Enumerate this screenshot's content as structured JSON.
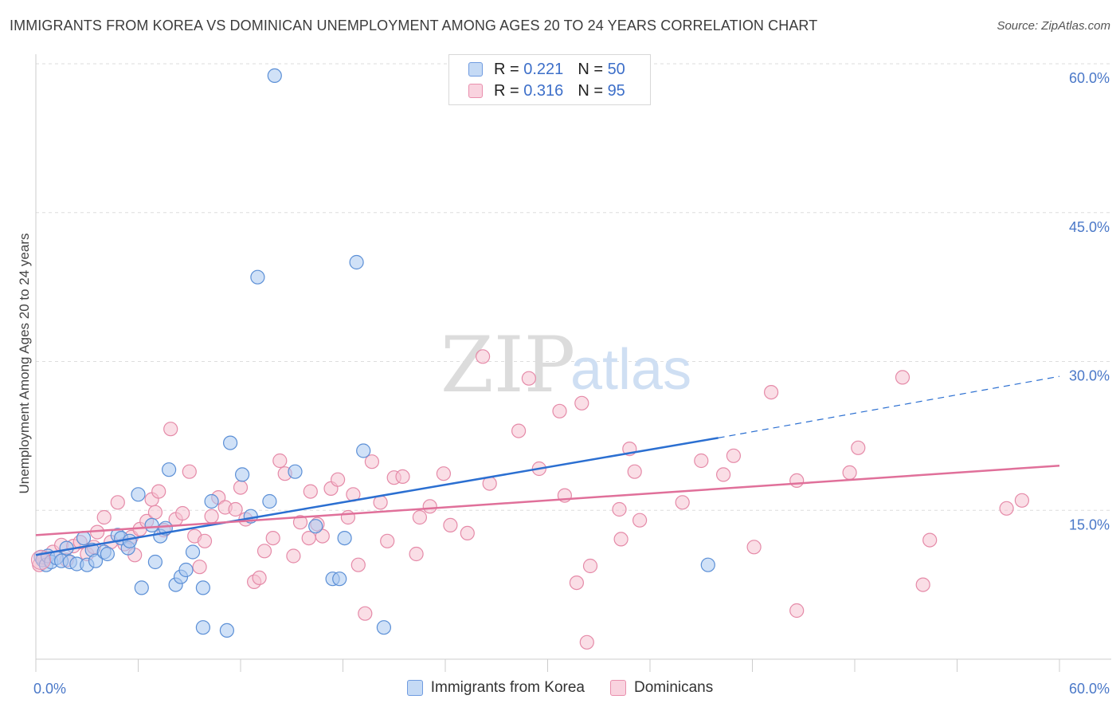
{
  "title": "IMMIGRANTS FROM KOREA VS DOMINICAN UNEMPLOYMENT AMONG AGES 20 TO 24 YEARS CORRELATION CHART",
  "source": "Source: ZipAtlas.com",
  "watermark": {
    "zip": "ZIP",
    "atlas": "atlas"
  },
  "stats": [
    {
      "r_label": "R =",
      "r_value": "0.221",
      "n_label": "N =",
      "n_value": "50"
    },
    {
      "r_label": "R =",
      "r_value": "0.316",
      "n_label": "N =",
      "n_value": "95"
    }
  ],
  "legend": [
    {
      "label": "Immigrants from Korea"
    },
    {
      "label": "Dominicans"
    }
  ],
  "colors": {
    "korea_fill": "#aac8f0",
    "korea_stroke": "#5b8fd6",
    "korea_line": "#2b6fd1",
    "dominican_fill": "#f6c2d2",
    "dominican_stroke": "#e58aa8",
    "dominican_line": "#e0709a",
    "tick_text": "#4a78c8",
    "grid": "#dddddd"
  },
  "chart_data": {
    "type": "scatter",
    "title": "IMMIGRANTS FROM KOREA VS DOMINICAN UNEMPLOYMENT AMONG AGES 20 TO 24 YEARS CORRELATION CHART",
    "xlabel": "",
    "ylabel": "Unemployment Among Ages 20 to 24 years",
    "xlim": [
      0,
      60
    ],
    "ylim": [
      0,
      60
    ],
    "x_tick_labels": [
      "0.0%",
      "60.0%"
    ],
    "y_ticks": [
      15,
      30,
      45,
      60
    ],
    "y_tick_labels": [
      "15.0%",
      "30.0%",
      "45.0%",
      "60.0%"
    ],
    "grid": true,
    "legend_position": "bottom-center",
    "series": [
      {
        "name": "Immigrants from Korea",
        "r": 0.221,
        "n": 50,
        "trend": {
          "x0": 0,
          "y0": 10.5,
          "x1": 40,
          "y1": 22.3,
          "dashed_to_x": 60,
          "dashed_to_y": 28.5
        },
        "points": [
          [
            0.3,
            10.3
          ],
          [
            0.4,
            10.0
          ],
          [
            0.6,
            9.5
          ],
          [
            0.7,
            10.4
          ],
          [
            0.9,
            9.8
          ],
          [
            1.2,
            10.2
          ],
          [
            1.5,
            9.9
          ],
          [
            1.8,
            11.2
          ],
          [
            2.0,
            9.8
          ],
          [
            2.4,
            9.6
          ],
          [
            2.8,
            12.2
          ],
          [
            3.0,
            9.5
          ],
          [
            3.3,
            11.0
          ],
          [
            3.5,
            9.9
          ],
          [
            4.0,
            10.8
          ],
          [
            4.2,
            10.6
          ],
          [
            4.8,
            12.5
          ],
          [
            5.0,
            12.2
          ],
          [
            5.4,
            11.2
          ],
          [
            5.5,
            11.9
          ],
          [
            6.0,
            16.6
          ],
          [
            6.2,
            7.2
          ],
          [
            6.8,
            13.5
          ],
          [
            7.0,
            9.8
          ],
          [
            7.3,
            12.4
          ],
          [
            7.6,
            13.2
          ],
          [
            7.8,
            19.1
          ],
          [
            8.2,
            7.5
          ],
          [
            8.5,
            8.3
          ],
          [
            8.8,
            9.0
          ],
          [
            9.2,
            10.8
          ],
          [
            9.8,
            7.2
          ],
          [
            9.8,
            3.2
          ],
          [
            10.3,
            15.9
          ],
          [
            11.2,
            2.9
          ],
          [
            11.4,
            21.8
          ],
          [
            12.1,
            18.6
          ],
          [
            12.6,
            14.4
          ],
          [
            13.0,
            38.5
          ],
          [
            13.7,
            15.9
          ],
          [
            14.0,
            58.8
          ],
          [
            15.2,
            18.9
          ],
          [
            16.4,
            13.4
          ],
          [
            17.4,
            8.1
          ],
          [
            17.8,
            8.1
          ],
          [
            18.1,
            12.2
          ],
          [
            18.8,
            40.0
          ],
          [
            19.2,
            21.0
          ],
          [
            20.4,
            3.2
          ],
          [
            39.4,
            9.5
          ]
        ]
      },
      {
        "name": "Dominicans",
        "r": 0.316,
        "n": 95,
        "trend": {
          "x0": 0,
          "y0": 12.5,
          "x1": 60,
          "y1": 19.5
        },
        "points": [
          [
            0.2,
            9.5
          ],
          [
            0.5,
            10.2
          ],
          [
            1.0,
            10.8
          ],
          [
            1.5,
            11.5
          ],
          [
            1.8,
            10.0
          ],
          [
            2.2,
            11.4
          ],
          [
            2.6,
            11.8
          ],
          [
            3.0,
            10.6
          ],
          [
            3.4,
            11.3
          ],
          [
            3.6,
            12.8
          ],
          [
            4.0,
            14.3
          ],
          [
            4.4,
            11.8
          ],
          [
            4.8,
            15.8
          ],
          [
            5.2,
            11.6
          ],
          [
            5.6,
            12.3
          ],
          [
            5.8,
            10.5
          ],
          [
            6.1,
            13.1
          ],
          [
            6.5,
            13.9
          ],
          [
            6.8,
            16.1
          ],
          [
            7.0,
            14.8
          ],
          [
            7.2,
            16.9
          ],
          [
            7.5,
            13.0
          ],
          [
            7.9,
            23.2
          ],
          [
            8.2,
            14.1
          ],
          [
            8.6,
            14.7
          ],
          [
            9.0,
            18.9
          ],
          [
            9.3,
            12.4
          ],
          [
            9.6,
            9.3
          ],
          [
            9.9,
            11.9
          ],
          [
            10.3,
            14.4
          ],
          [
            10.7,
            16.3
          ],
          [
            11.1,
            15.3
          ],
          [
            11.7,
            15.1
          ],
          [
            12.0,
            17.3
          ],
          [
            12.3,
            14.1
          ],
          [
            12.8,
            7.8
          ],
          [
            13.1,
            8.2
          ],
          [
            13.4,
            10.9
          ],
          [
            13.9,
            12.2
          ],
          [
            14.3,
            20.0
          ],
          [
            14.6,
            18.7
          ],
          [
            15.1,
            10.4
          ],
          [
            15.5,
            13.8
          ],
          [
            16.0,
            12.2
          ],
          [
            16.1,
            16.9
          ],
          [
            16.5,
            13.6
          ],
          [
            16.8,
            12.4
          ],
          [
            17.3,
            17.2
          ],
          [
            17.7,
            18.1
          ],
          [
            18.3,
            14.3
          ],
          [
            18.6,
            16.6
          ],
          [
            18.9,
            9.5
          ],
          [
            19.3,
            4.6
          ],
          [
            19.7,
            19.9
          ],
          [
            20.2,
            15.8
          ],
          [
            20.6,
            11.9
          ],
          [
            21.0,
            18.3
          ],
          [
            21.5,
            18.4
          ],
          [
            22.3,
            10.6
          ],
          [
            22.5,
            14.3
          ],
          [
            23.1,
            15.4
          ],
          [
            23.9,
            18.7
          ],
          [
            24.3,
            13.5
          ],
          [
            25.3,
            12.7
          ],
          [
            26.2,
            30.5
          ],
          [
            26.6,
            17.7
          ],
          [
            28.3,
            23.0
          ],
          [
            28.9,
            28.3
          ],
          [
            29.5,
            19.2
          ],
          [
            30.7,
            25.0
          ],
          [
            31.0,
            16.5
          ],
          [
            31.7,
            7.7
          ],
          [
            32.0,
            25.8
          ],
          [
            32.3,
            1.7
          ],
          [
            32.5,
            9.4
          ],
          [
            34.2,
            15.1
          ],
          [
            34.3,
            12.1
          ],
          [
            34.8,
            21.2
          ],
          [
            35.1,
            18.9
          ],
          [
            35.4,
            14.0
          ],
          [
            37.9,
            15.8
          ],
          [
            39.0,
            20.0
          ],
          [
            40.3,
            18.6
          ],
          [
            40.9,
            20.5
          ],
          [
            42.1,
            11.3
          ],
          [
            43.1,
            26.9
          ],
          [
            44.6,
            18.0
          ],
          [
            44.6,
            4.9
          ],
          [
            47.7,
            18.8
          ],
          [
            48.2,
            21.3
          ],
          [
            50.8,
            28.4
          ],
          [
            52.0,
            7.5
          ],
          [
            52.4,
            12.0
          ],
          [
            56.9,
            15.2
          ],
          [
            57.8,
            16.0
          ]
        ]
      }
    ]
  }
}
